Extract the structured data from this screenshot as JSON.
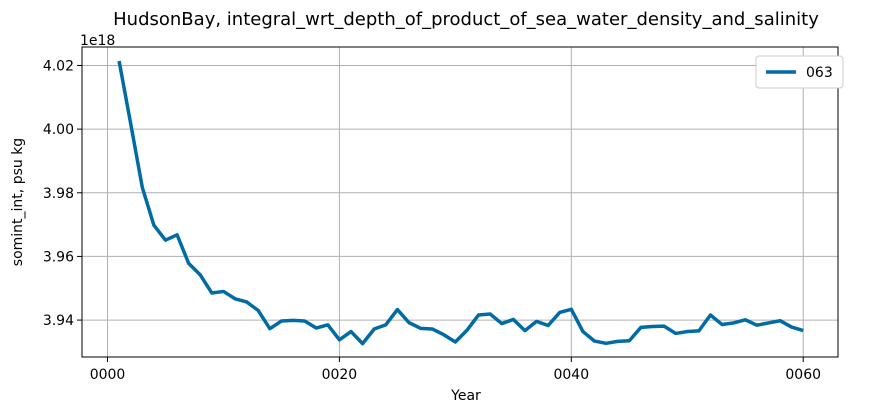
{
  "chart_data": {
    "type": "line",
    "title": "HudsonBay, integral_wrt_depth_of_product_of_sea_water_density_and_salinity",
    "xlabel": "Year",
    "ylabel": "somint_int, psu kg",
    "offset_label": "1e18",
    "xlim": [
      -2.2,
      63.0
    ],
    "ylim": [
      3.9284,
      4.0258
    ],
    "x_ticks": [
      0,
      20,
      40,
      60
    ],
    "x_tick_labels": [
      "0000",
      "0020",
      "0040",
      "0060"
    ],
    "y_ticks": [
      3.94,
      3.96,
      3.98,
      4.0,
      4.02
    ],
    "y_tick_labels": [
      "3.94",
      "3.96",
      "3.98",
      "4.00",
      "4.02"
    ],
    "grid": true,
    "legend_position": "top-right",
    "color": "#006ba4",
    "series": [
      {
        "name": "063",
        "x": [
          1,
          2,
          3,
          4,
          5,
          6,
          7,
          8,
          9,
          10,
          11,
          12,
          13,
          14,
          15,
          16,
          17,
          18,
          19,
          20,
          21,
          22,
          23,
          24,
          25,
          26,
          27,
          28,
          29,
          30,
          31,
          32,
          33,
          34,
          35,
          36,
          37,
          38,
          39,
          40,
          41,
          42,
          43,
          44,
          45,
          46,
          47,
          48,
          49,
          50,
          51,
          52,
          53,
          54,
          55,
          56,
          57,
          58,
          59,
          60
        ],
        "values": [
          4.0214,
          4.0017,
          3.9817,
          3.9698,
          3.9651,
          3.9668,
          3.9578,
          3.9542,
          3.9485,
          3.949,
          3.9467,
          3.9457,
          3.943,
          3.9373,
          3.9397,
          3.9399,
          3.9397,
          3.9375,
          3.9385,
          3.9338,
          3.9364,
          3.9326,
          3.9372,
          3.9385,
          3.9433,
          3.9392,
          3.9374,
          3.9372,
          3.9354,
          3.9331,
          3.9368,
          3.9416,
          3.9419,
          3.9389,
          3.9402,
          3.9367,
          3.9396,
          3.9383,
          3.9424,
          3.9434,
          3.9364,
          3.9334,
          3.9327,
          3.9333,
          3.9335,
          3.9377,
          3.938,
          3.9381,
          3.9358,
          3.9364,
          3.9366,
          3.9416,
          3.9386,
          3.9391,
          3.9401,
          3.9384,
          3.9391,
          3.9398,
          3.9378,
          3.9367
        ]
      }
    ]
  }
}
